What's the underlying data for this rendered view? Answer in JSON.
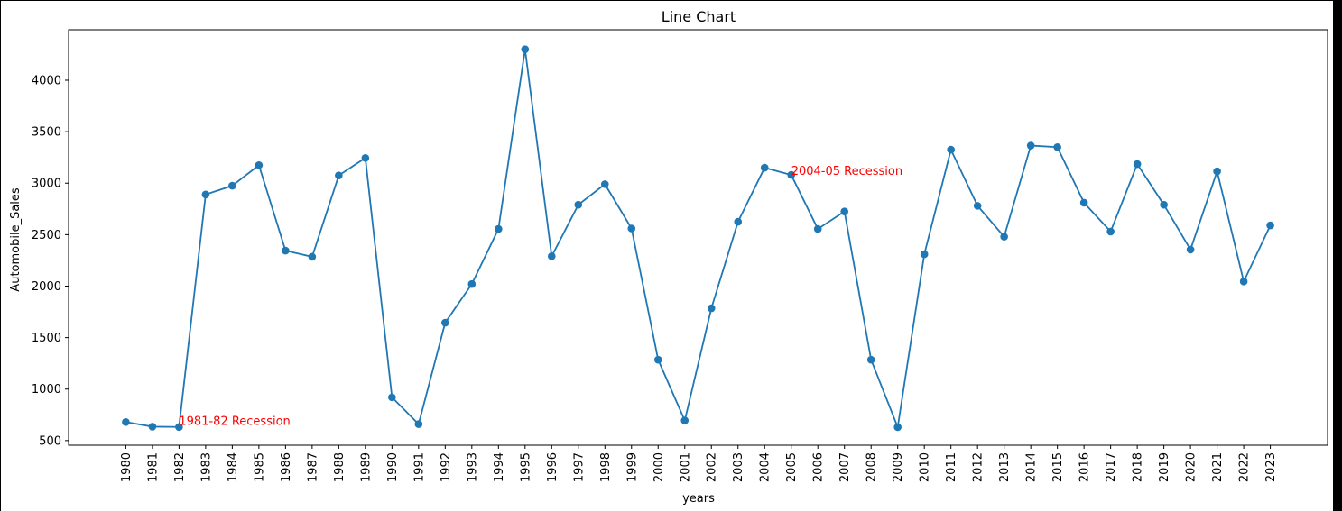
{
  "chart_data": {
    "type": "line",
    "title": "Line Chart",
    "xlabel": "years",
    "ylabel": "Automobile_Sales",
    "x": [
      1980,
      1981,
      1982,
      1983,
      1984,
      1985,
      1986,
      1987,
      1988,
      1989,
      1990,
      1991,
      1992,
      1993,
      1994,
      1995,
      1996,
      1997,
      1998,
      1999,
      2000,
      2001,
      2002,
      2003,
      2004,
      2005,
      2006,
      2007,
      2008,
      2009,
      2010,
      2011,
      2012,
      2013,
      2014,
      2015,
      2016,
      2017,
      2018,
      2019,
      2020,
      2021,
      2022,
      2023
    ],
    "series": [
      {
        "values": [
          680,
          635,
          632,
          2890,
          2975,
          3175,
          2345,
          2285,
          3075,
          3245,
          920,
          660,
          1645,
          2020,
          2555,
          4300,
          2290,
          2790,
          2990,
          2560,
          1285,
          695,
          1785,
          2625,
          3150,
          3080,
          2555,
          2725,
          1285,
          630,
          2310,
          3325,
          2780,
          2480,
          3365,
          3350,
          2810,
          2530,
          3185,
          2790,
          2355,
          3115,
          2045,
          2590
        ],
        "color": "#1f77b4",
        "marker": "circle"
      }
    ],
    "ylim": [
      455,
      4490
    ],
    "yticks": [
      500,
      1000,
      1500,
      2000,
      2500,
      3000,
      3500,
      4000
    ],
    "xlim": [
      1977.85,
      2025.15
    ],
    "grid": false,
    "annotations": [
      {
        "text": "1981-82 Recession",
        "x": 1982,
        "y": 650,
        "color": "#ff0000"
      },
      {
        "text": "2004-05 Recession",
        "x": 2005,
        "y": 3080,
        "color": "#ff0000"
      }
    ]
  }
}
